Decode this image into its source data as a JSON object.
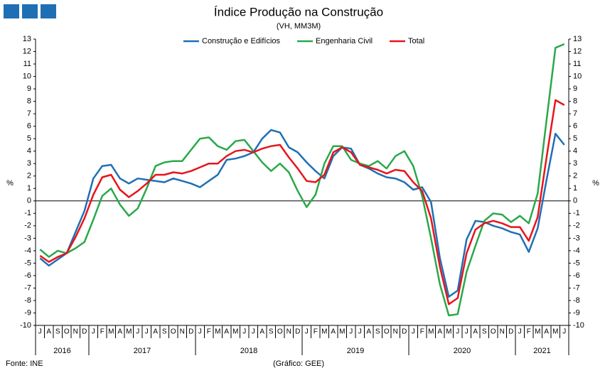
{
  "chart_data": {
    "type": "line",
    "title": "Índice Produção na Construção",
    "subtitle": "(VH, MM3M)",
    "y_label": "%",
    "y2_label": "%",
    "source": "Fonte: INE",
    "credit": "(Gráfico: GEE)",
    "categories": [
      "J",
      "A",
      "S",
      "O",
      "N",
      "D",
      "J",
      "F",
      "M",
      "A",
      "M",
      "J",
      "J",
      "A",
      "S",
      "O",
      "N",
      "D",
      "J",
      "F",
      "M",
      "A",
      "M",
      "J",
      "J",
      "A",
      "S",
      "O",
      "N",
      "D",
      "J",
      "F",
      "M",
      "A",
      "M",
      "J",
      "J",
      "A",
      "S",
      "O",
      "N",
      "D",
      "J",
      "F",
      "M",
      "A",
      "M",
      "J",
      "J",
      "A",
      "S",
      "O",
      "N",
      "D",
      "J",
      "F",
      "M",
      "A",
      "M",
      "J"
    ],
    "years": [
      "2016",
      "2017",
      "2018",
      "2019",
      "2020",
      "2021"
    ],
    "series": [
      {
        "name": "Construção e Edifícios",
        "color": "#1f6fb5",
        "values": [
          -4.6,
          -5.2,
          -4.7,
          -4.2,
          -2.5,
          -0.8,
          1.8,
          2.8,
          2.9,
          1.8,
          1.4,
          1.8,
          1.7,
          1.6,
          1.5,
          1.8,
          1.6,
          1.4,
          1.1,
          1.6,
          2.1,
          3.3,
          3.4,
          3.6,
          3.9,
          5.0,
          5.7,
          5.5,
          4.3,
          3.9,
          3.1,
          2.4,
          1.8,
          3.6,
          4.3,
          4.2,
          2.9,
          2.6,
          2.2,
          1.9,
          1.8,
          1.5,
          0.9,
          1.1,
          -0.1,
          -4.6,
          -7.7,
          -7.2,
          -3.1,
          -1.6,
          -1.7,
          -2.0,
          -2.2,
          -2.5,
          -2.7,
          -4.1,
          -2.2,
          1.7,
          5.4,
          4.5
        ]
      },
      {
        "name": "Engenharia Civil",
        "color": "#2aa84a",
        "values": [
          -3.9,
          -4.5,
          -4.0,
          -4.2,
          -3.8,
          -3.3,
          -1.5,
          0.4,
          1.0,
          -0.3,
          -1.2,
          -0.6,
          1.0,
          2.8,
          3.1,
          3.2,
          3.2,
          4.1,
          5.0,
          5.1,
          4.4,
          4.1,
          4.8,
          4.9,
          4.0,
          3.1,
          2.4,
          3.0,
          2.3,
          0.8,
          -0.5,
          0.5,
          3.0,
          4.4,
          4.4,
          3.3,
          3.0,
          2.8,
          3.2,
          2.6,
          3.6,
          4.0,
          2.8,
          0.4,
          -3.0,
          -6.7,
          -9.2,
          -9.1,
          -5.7,
          -3.6,
          -1.6,
          -1.0,
          -1.1,
          -1.7,
          -1.2,
          -1.8,
          0.6,
          6.5,
          12.3,
          12.6
        ]
      },
      {
        "name": "Total",
        "color": "#e8141b",
        "values": [
          -4.4,
          -4.9,
          -4.5,
          -4.2,
          -2.9,
          -1.4,
          0.5,
          1.9,
          2.1,
          0.9,
          0.3,
          0.8,
          1.4,
          2.1,
          2.1,
          2.3,
          2.2,
          2.4,
          2.7,
          3.0,
          3.0,
          3.6,
          4.0,
          4.1,
          3.9,
          4.2,
          4.4,
          4.5,
          3.5,
          2.6,
          1.6,
          1.5,
          2.1,
          3.9,
          4.3,
          3.9,
          2.9,
          2.7,
          2.5,
          2.2,
          2.5,
          2.4,
          1.5,
          0.8,
          -1.4,
          -5.3,
          -8.3,
          -7.8,
          -4.2,
          -2.3,
          -1.8,
          -1.6,
          -1.8,
          -2.1,
          -2.1,
          -3.2,
          -1.3,
          3.5,
          8.1,
          7.7
        ]
      }
    ],
    "ylim": [
      -10,
      13
    ],
    "yticks": [
      -10,
      -9,
      -8,
      -7,
      -6,
      -5,
      -4,
      -3,
      -2,
      -1,
      0,
      1,
      2,
      3,
      4,
      5,
      6,
      7,
      8,
      9,
      10,
      11,
      12,
      13
    ],
    "y2lim": [
      -10,
      13
    ],
    "y2ticks": [
      -10,
      -9,
      -8,
      -7,
      -6,
      -5,
      -4,
      -3,
      -2,
      -1,
      0,
      1,
      2,
      3,
      4,
      5,
      6,
      7,
      8,
      9,
      10,
      11,
      12,
      13
    ]
  }
}
